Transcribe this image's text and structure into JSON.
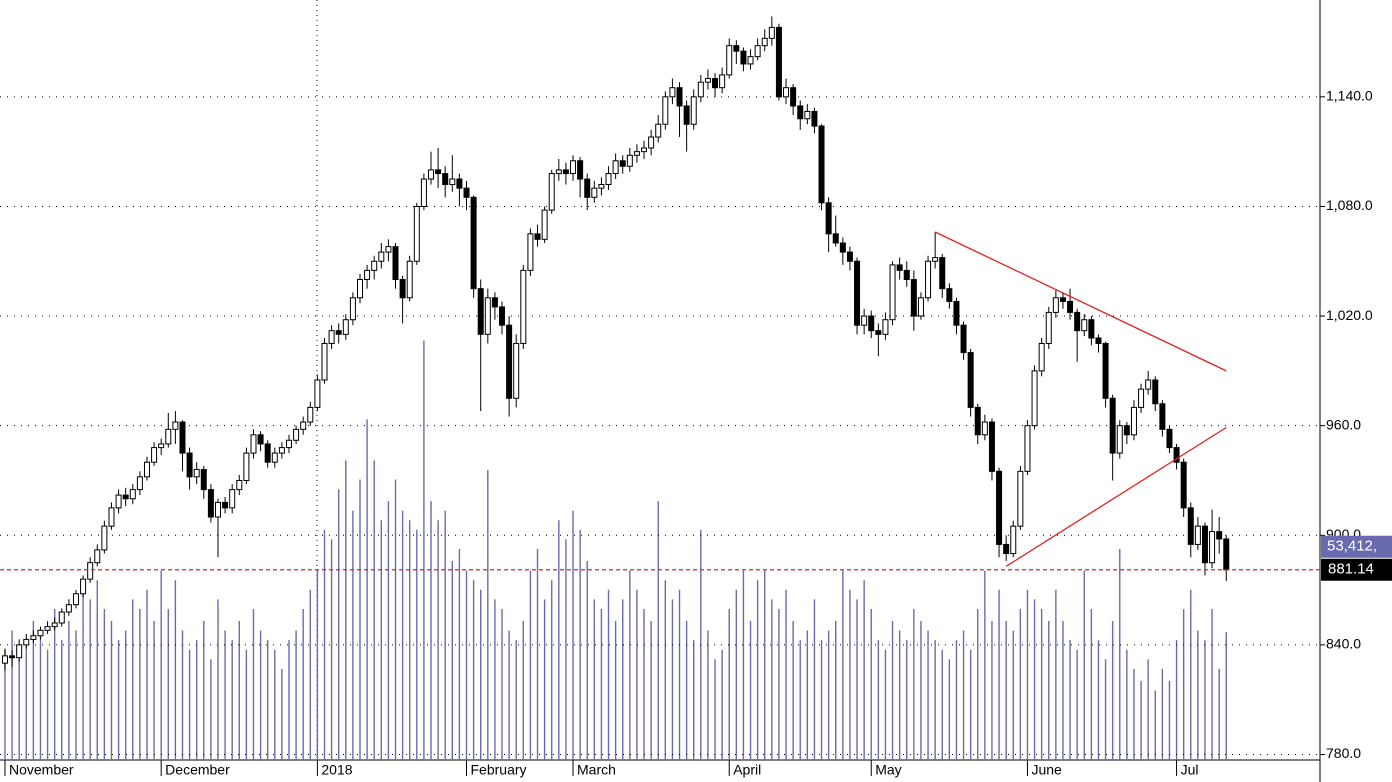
{
  "chart_data": {
    "type": "candlestick",
    "ohlc": [
      [
        830,
        838,
        826,
        834
      ],
      [
        834,
        837,
        828,
        833
      ],
      [
        833,
        843,
        831,
        840
      ],
      [
        840,
        846,
        838,
        843
      ],
      [
        843,
        848,
        841,
        845
      ],
      [
        845,
        850,
        843,
        848
      ],
      [
        848,
        853,
        846,
        850
      ],
      [
        850,
        855,
        848,
        852
      ],
      [
        852,
        860,
        850,
        858
      ],
      [
        858,
        865,
        856,
        862
      ],
      [
        862,
        870,
        860,
        868
      ],
      [
        868,
        878,
        866,
        876
      ],
      [
        876,
        888,
        874,
        885
      ],
      [
        885,
        895,
        883,
        892
      ],
      [
        892,
        908,
        890,
        905
      ],
      [
        905,
        918,
        903,
        915
      ],
      [
        915,
        925,
        912,
        922
      ],
      [
        922,
        926,
        916,
        920
      ],
      [
        920,
        928,
        917,
        925
      ],
      [
        925,
        935,
        922,
        932
      ],
      [
        932,
        943,
        930,
        940
      ],
      [
        940,
        951,
        938,
        948
      ],
      [
        948,
        953,
        944,
        950
      ],
      [
        950,
        967,
        948,
        958
      ],
      [
        958,
        968,
        950,
        962
      ],
      [
        962,
        963,
        935,
        945
      ],
      [
        945,
        948,
        925,
        932
      ],
      [
        932,
        940,
        928,
        936
      ],
      [
        936,
        938,
        920,
        925
      ],
      [
        925,
        928,
        907,
        910
      ],
      [
        910,
        920,
        888,
        918
      ],
      [
        918,
        921,
        912,
        915
      ],
      [
        915,
        928,
        912,
        925
      ],
      [
        925,
        933,
        922,
        930
      ],
      [
        930,
        948,
        928,
        945
      ],
      [
        945,
        958,
        942,
        955
      ],
      [
        955,
        957,
        946,
        950
      ],
      [
        950,
        952,
        937,
        940
      ],
      [
        940,
        948,
        937,
        945
      ],
      [
        945,
        951,
        942,
        948
      ],
      [
        948,
        955,
        945,
        952
      ],
      [
        952,
        960,
        950,
        958
      ],
      [
        958,
        965,
        955,
        962
      ],
      [
        962,
        973,
        960,
        970
      ],
      [
        970,
        988,
        968,
        985
      ],
      [
        985,
        1008,
        983,
        1005
      ],
      [
        1005,
        1015,
        1002,
        1012
      ],
      [
        1012,
        1016,
        1005,
        1010
      ],
      [
        1010,
        1021,
        1007,
        1018
      ],
      [
        1018,
        1033,
        1015,
        1030
      ],
      [
        1030,
        1043,
        1027,
        1040
      ],
      [
        1040,
        1048,
        1035,
        1045
      ],
      [
        1045,
        1053,
        1040,
        1050
      ],
      [
        1050,
        1060,
        1046,
        1055
      ],
      [
        1055,
        1062,
        1050,
        1058
      ],
      [
        1058,
        1060,
        1035,
        1040
      ],
      [
        1040,
        1042,
        1016,
        1030
      ],
      [
        1030,
        1053,
        1028,
        1050
      ],
      [
        1050,
        1082,
        1048,
        1080
      ],
      [
        1080,
        1098,
        1078,
        1095
      ],
      [
        1095,
        1110,
        1092,
        1100
      ],
      [
        1100,
        1112,
        1090,
        1098
      ],
      [
        1098,
        1102,
        1085,
        1092
      ],
      [
        1092,
        1108,
        1088,
        1095
      ],
      [
        1095,
        1098,
        1080,
        1090
      ],
      [
        1090,
        1094,
        1078,
        1085
      ],
      [
        1085,
        1086,
        1030,
        1035
      ],
      [
        1035,
        1040,
        968,
        1010
      ],
      [
        1010,
        1035,
        1005,
        1030
      ],
      [
        1030,
        1033,
        1018,
        1025
      ],
      [
        1025,
        1028,
        1010,
        1015
      ],
      [
        1015,
        1020,
        965,
        975
      ],
      [
        975,
        1010,
        970,
        1005
      ],
      [
        1005,
        1048,
        1002,
        1045
      ],
      [
        1045,
        1068,
        1042,
        1065
      ],
      [
        1065,
        1070,
        1058,
        1062
      ],
      [
        1062,
        1080,
        1060,
        1078
      ],
      [
        1078,
        1100,
        1076,
        1098
      ],
      [
        1098,
        1106,
        1094,
        1100
      ],
      [
        1100,
        1104,
        1092,
        1098
      ],
      [
        1098,
        1108,
        1094,
        1105
      ],
      [
        1105,
        1107,
        1085,
        1095
      ],
      [
        1095,
        1098,
        1078,
        1085
      ],
      [
        1085,
        1094,
        1082,
        1090
      ],
      [
        1090,
        1096,
        1086,
        1092
      ],
      [
        1092,
        1102,
        1089,
        1098
      ],
      [
        1098,
        1109,
        1095,
        1105
      ],
      [
        1105,
        1108,
        1098,
        1102
      ],
      [
        1102,
        1112,
        1099,
        1108
      ],
      [
        1108,
        1114,
        1104,
        1110
      ],
      [
        1110,
        1116,
        1106,
        1112
      ],
      [
        1112,
        1122,
        1108,
        1118
      ],
      [
        1118,
        1130,
        1115,
        1125
      ],
      [
        1125,
        1143,
        1122,
        1140
      ],
      [
        1140,
        1150,
        1136,
        1145
      ],
      [
        1145,
        1148,
        1118,
        1135
      ],
      [
        1135,
        1138,
        1110,
        1125
      ],
      [
        1125,
        1144,
        1122,
        1140
      ],
      [
        1140,
        1152,
        1137,
        1148
      ],
      [
        1148,
        1155,
        1144,
        1150
      ],
      [
        1150,
        1153,
        1140,
        1145
      ],
      [
        1145,
        1156,
        1142,
        1152
      ],
      [
        1152,
        1172,
        1150,
        1168
      ],
      [
        1168,
        1171,
        1158,
        1165
      ],
      [
        1165,
        1167,
        1154,
        1158
      ],
      [
        1158,
        1166,
        1155,
        1162
      ],
      [
        1162,
        1172,
        1160,
        1168
      ],
      [
        1168,
        1177,
        1165,
        1172
      ],
      [
        1172,
        1184,
        1168,
        1178
      ],
      [
        1178,
        1180,
        1138,
        1140
      ],
      [
        1140,
        1150,
        1136,
        1145
      ],
      [
        1145,
        1147,
        1130,
        1135
      ],
      [
        1135,
        1138,
        1122,
        1128
      ],
      [
        1128,
        1136,
        1125,
        1132
      ],
      [
        1132,
        1134,
        1120,
        1124
      ],
      [
        1124,
        1125,
        1078,
        1082
      ],
      [
        1082,
        1085,
        1055,
        1065
      ],
      [
        1065,
        1075,
        1058,
        1060
      ],
      [
        1060,
        1063,
        1048,
        1055
      ],
      [
        1055,
        1058,
        1045,
        1050
      ],
      [
        1050,
        1052,
        1010,
        1015
      ],
      [
        1015,
        1024,
        1010,
        1020
      ],
      [
        1020,
        1023,
        1008,
        1012
      ],
      [
        1012,
        1016,
        998,
        1010
      ],
      [
        1010,
        1022,
        1007,
        1018
      ],
      [
        1018,
        1050,
        1015,
        1048
      ],
      [
        1048,
        1052,
        1040,
        1045
      ],
      [
        1045,
        1050,
        1036,
        1040
      ],
      [
        1040,
        1045,
        1012,
        1020
      ],
      [
        1020,
        1033,
        1018,
        1030
      ],
      [
        1030,
        1053,
        1028,
        1050
      ],
      [
        1050,
        1066,
        1046,
        1052
      ],
      [
        1052,
        1054,
        1030,
        1035
      ],
      [
        1035,
        1038,
        1024,
        1028
      ],
      [
        1028,
        1030,
        1010,
        1015
      ],
      [
        1015,
        1017,
        996,
        1000
      ],
      [
        1000,
        1002,
        965,
        970
      ],
      [
        970,
        972,
        950,
        955
      ],
      [
        955,
        966,
        952,
        962
      ],
      [
        962,
        964,
        930,
        935
      ],
      [
        935,
        937,
        888,
        895
      ],
      [
        895,
        900,
        886,
        890
      ],
      [
        890,
        908,
        888,
        905
      ],
      [
        905,
        938,
        903,
        935
      ],
      [
        935,
        963,
        933,
        960
      ],
      [
        960,
        993,
        958,
        990
      ],
      [
        990,
        1008,
        987,
        1005
      ],
      [
        1005,
        1025,
        1002,
        1022
      ],
      [
        1022,
        1034,
        1019,
        1030
      ],
      [
        1030,
        1033,
        1024,
        1028
      ],
      [
        1028,
        1035,
        1018,
        1022
      ],
      [
        1022,
        1024,
        995,
        1012
      ],
      [
        1012,
        1021,
        1009,
        1018
      ],
      [
        1018,
        1020,
        1004,
        1008
      ],
      [
        1008,
        1010,
        1000,
        1005
      ],
      [
        1005,
        1006,
        970,
        975
      ],
      [
        975,
        977,
        930,
        945
      ],
      [
        945,
        963,
        942,
        960
      ],
      [
        960,
        962,
        950,
        955
      ],
      [
        955,
        974,
        952,
        970
      ],
      [
        970,
        983,
        967,
        980
      ],
      [
        980,
        990,
        977,
        985
      ],
      [
        985,
        987,
        968,
        972
      ],
      [
        972,
        974,
        954,
        958
      ],
      [
        958,
        960,
        945,
        948
      ],
      [
        948,
        950,
        936,
        940
      ],
      [
        940,
        942,
        910,
        915
      ],
      [
        915,
        918,
        888,
        895
      ],
      [
        895,
        910,
        892,
        905
      ],
      [
        905,
        907,
        878,
        885
      ],
      [
        885,
        914,
        882,
        902
      ],
      [
        902,
        910,
        890,
        898
      ],
      [
        898,
        900,
        875,
        881.14
      ]
    ],
    "volume": [
      46000,
      54000,
      42000,
      50000,
      58000,
      54000,
      46000,
      63000,
      50000,
      58000,
      54000,
      71000,
      67000,
      75000,
      63000,
      58000,
      50000,
      54000,
      67000,
      63000,
      71000,
      58000,
      79000,
      63000,
      75000,
      54000,
      46000,
      50000,
      58000,
      42000,
      67000,
      54000,
      50000,
      58000,
      46000,
      63000,
      54000,
      50000,
      46000,
      38000,
      50000,
      54000,
      63000,
      71000,
      79000,
      96000,
      92000,
      113000,
      125000,
      104000,
      117000,
      142000,
      125000,
      100000,
      108000,
      117000,
      104000,
      100000,
      96000,
      175000,
      108000,
      100000,
      104000,
      83000,
      88000,
      79000,
      75000,
      71000,
      121000,
      67000,
      63000,
      54000,
      50000,
      58000,
      79000,
      88000,
      67000,
      75000,
      100000,
      92000,
      104000,
      96000,
      83000,
      67000,
      63000,
      71000,
      58000,
      67000,
      79000,
      71000,
      63000,
      58000,
      108000,
      75000,
      67000,
      71000,
      58000,
      50000,
      96000,
      54000,
      42000,
      46000,
      63000,
      71000,
      79000,
      58000,
      75000,
      79000,
      67000,
      63000,
      71000,
      58000,
      50000,
      54000,
      67000,
      50000,
      54000,
      58000,
      79000,
      71000,
      67000,
      75000,
      63000,
      50000,
      46000,
      58000,
      54000,
      50000,
      63000,
      58000,
      54000,
      50000,
      46000,
      42000,
      50000,
      54000,
      46000,
      63000,
      79000,
      58000,
      71000,
      58000,
      54000,
      63000,
      71000,
      67000,
      63000,
      58000,
      71000,
      58000,
      50000,
      46000,
      79000,
      63000,
      50000,
      42000,
      58000,
      88000,
      46000,
      38000,
      33000,
      42000,
      29000,
      38000,
      33000,
      50000,
      63000,
      71000,
      54000,
      50000,
      63000,
      38000,
      53412
    ],
    "colors": {
      "up": "#ffffff",
      "down": "#000000",
      "outline": "#000000",
      "volume": "#6a6aae",
      "trend": "#e02020",
      "last": "#e02020"
    },
    "xlim": [
      -0.7,
      185.2
    ],
    "xticks": [
      {
        "value": 0,
        "label": "November"
      },
      {
        "value": 22,
        "label": "December"
      },
      {
        "value": 44,
        "label": "2018"
      },
      {
        "value": 65,
        "label": "February"
      },
      {
        "value": 80,
        "label": "March"
      },
      {
        "value": 102,
        "label": "April"
      },
      {
        "value": 122,
        "label": "May"
      },
      {
        "value": 144,
        "label": "June"
      },
      {
        "value": 165,
        "label": "Jul"
      }
    ],
    "ylim": [
      777,
      1193
    ],
    "yticks": [
      {
        "value": 780,
        "label": "780.0"
      },
      {
        "value": 840,
        "label": "840.0"
      },
      {
        "value": 900,
        "label": "900.0"
      },
      {
        "value": 960,
        "label": "960.0"
      },
      {
        "value": 1020,
        "label": "1,020.0"
      },
      {
        "value": 1080,
        "label": "1,080.0"
      },
      {
        "value": 1140,
        "label": "1,140.0"
      }
    ],
    "vlim": [
      0,
      317000
    ],
    "grid": true,
    "trendlines": [
      {
        "x": [
          131,
          172
        ],
        "y": [
          1066,
          990
        ]
      },
      {
        "x": [
          141,
          172
        ],
        "y": [
          883,
          959
        ]
      }
    ],
    "last_price": 881.14,
    "volume_label": "53,412,"
  }
}
